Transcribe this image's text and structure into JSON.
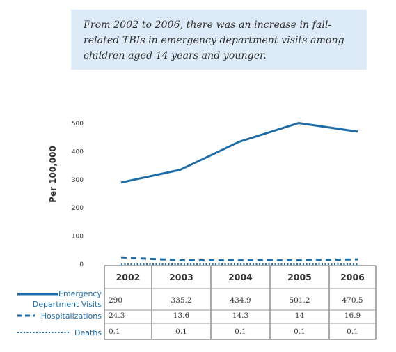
{
  "callout": {
    "line1": "From 2002 to 2006, there was an increase in fall-",
    "line2": "related TBIs in emergency department visits among",
    "line3": "children aged 14 years and younger."
  },
  "colors": {
    "series": "#1f6da8",
    "callout_bg": "#dcebf7",
    "grid": "#555555"
  },
  "chart_data": {
    "type": "line",
    "ylabel": "Per 100,000",
    "ylim": [
      0,
      500
    ],
    "yticks": [
      0,
      100,
      200,
      300,
      400,
      500
    ],
    "categories": [
      "2002",
      "2003",
      "2004",
      "2005",
      "2006"
    ],
    "series": [
      {
        "label_lines": [
          "Emergency",
          "Department Visits"
        ],
        "style": "solid",
        "values": [
          290,
          335.2,
          434.9,
          501.2,
          470.5
        ],
        "labels": [
          "290",
          "335.2",
          "434.9",
          "501.2",
          "470.5"
        ]
      },
      {
        "label_lines": [
          "Hospitalizations"
        ],
        "style": "dashed",
        "values": [
          24.3,
          13.6,
          14.3,
          14,
          16.9
        ],
        "labels": [
          "24.3",
          "13.6",
          "14.3",
          "14",
          "16.9"
        ]
      },
      {
        "label_lines": [
          "Deaths"
        ],
        "style": "dotted",
        "values": [
          0.1,
          0.1,
          0.1,
          0.1,
          0.1
        ],
        "labels": [
          "0.1",
          "0.1",
          "0.1",
          "0.1",
          "0.1"
        ]
      }
    ]
  }
}
